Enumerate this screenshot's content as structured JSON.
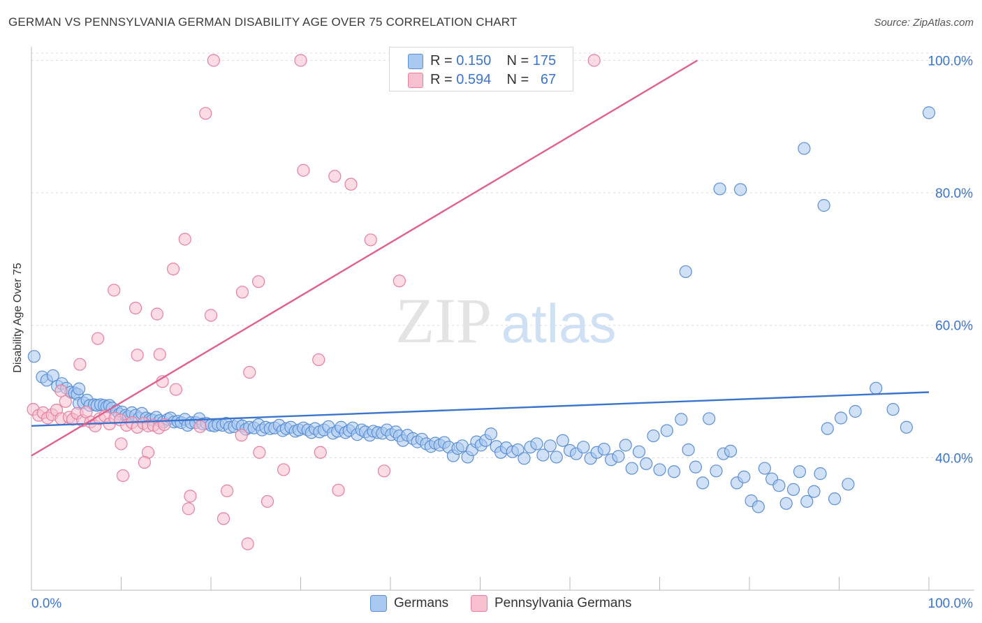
{
  "title": "GERMAN VS PENNSYLVANIA GERMAN DISABILITY AGE OVER 75 CORRELATION CHART",
  "source": "Source: ZipAtlas.com",
  "watermark": {
    "zip": "ZIP",
    "atlas": "atlas"
  },
  "legend": {
    "r_label": "R =",
    "n_label": "N =",
    "rows": [
      {
        "r": "0.150",
        "n": "175",
        "fill": "#a9c8f0",
        "stroke": "#5b8fd6"
      },
      {
        "r": "0.594",
        "n": "67",
        "fill": "#f7c0cf",
        "stroke": "#e67fa0"
      }
    ]
  },
  "bottom_legend": [
    {
      "label": "Germans",
      "fill": "#a9c8f0",
      "stroke": "#5b8fd6"
    },
    {
      "label": "Pennsylvania Germans",
      "fill": "#f7c0cf",
      "stroke": "#e67fa0"
    }
  ],
  "chart_data": {
    "type": "scatter",
    "title": "GERMAN VS PENNSYLVANIA GERMAN DISABILITY AGE OVER 75 CORRELATION CHART",
    "xlabel": "",
    "ylabel": "Disability Age Over 75",
    "xlim": [
      0,
      100
    ],
    "ylim": [
      20,
      101
    ],
    "x_tick_labels": {
      "left": "0.0%",
      "right": "100.0%"
    },
    "y_ticks": [
      40,
      60,
      80,
      100
    ],
    "y_tick_labels": [
      "40.0%",
      "60.0%",
      "80.0%",
      "100.0%"
    ],
    "grid": true,
    "series": [
      {
        "name": "Germans",
        "color": "#3a74cc",
        "fill": "#a9c8f0",
        "stroke": "#5b8fd6",
        "trend": {
          "x": [
            0,
            100
          ],
          "y": [
            44.8,
            49.9
          ]
        },
        "points": [
          [
            0.3,
            55.3
          ],
          [
            1.2,
            52.2
          ],
          [
            1.7,
            51.7
          ],
          [
            2.4,
            52.4
          ],
          [
            2.9,
            50.8
          ],
          [
            3.4,
            51.2
          ],
          [
            3.9,
            50.5
          ],
          [
            4.4,
            49.9
          ],
          [
            4.8,
            49.8
          ],
          [
            5.1,
            49.6
          ],
          [
            5.3,
            50.4
          ],
          [
            5.3,
            48.2
          ],
          [
            5.8,
            48.3
          ],
          [
            6.2,
            48.7
          ],
          [
            6.5,
            47.9
          ],
          [
            7.0,
            48.0
          ],
          [
            7.3,
            47.9
          ],
          [
            7.7,
            48.0
          ],
          [
            8.1,
            47.9
          ],
          [
            8.4,
            47.7
          ],
          [
            8.7,
            47.9
          ],
          [
            9.0,
            47.5
          ],
          [
            9.5,
            47.1
          ],
          [
            9.8,
            46.6
          ],
          [
            10.1,
            46.9
          ],
          [
            10.5,
            46.4
          ],
          [
            10.8,
            46.2
          ],
          [
            11.2,
            46.8
          ],
          [
            11.6,
            46.4
          ],
          [
            12.0,
            46.0
          ],
          [
            12.3,
            46.7
          ],
          [
            12.8,
            46.0
          ],
          [
            13.2,
            45.8
          ],
          [
            13.5,
            45.7
          ],
          [
            13.9,
            46.1
          ],
          [
            14.3,
            45.6
          ],
          [
            14.7,
            45.4
          ],
          [
            15.2,
            45.8
          ],
          [
            15.5,
            46.0
          ],
          [
            15.9,
            45.4
          ],
          [
            16.3,
            45.5
          ],
          [
            16.7,
            45.3
          ],
          [
            17.1,
            45.8
          ],
          [
            17.4,
            44.9
          ],
          [
            17.8,
            45.3
          ],
          [
            18.3,
            45.3
          ],
          [
            18.7,
            45.9
          ],
          [
            19.1,
            45.1
          ],
          [
            19.5,
            45.2
          ],
          [
            20.0,
            44.9
          ],
          [
            20.4,
            44.8
          ],
          [
            20.8,
            45.0
          ],
          [
            21.3,
            44.9
          ],
          [
            21.7,
            45.2
          ],
          [
            22.1,
            44.6
          ],
          [
            22.6,
            44.7
          ],
          [
            23.0,
            45.1
          ],
          [
            23.5,
            44.8
          ],
          [
            23.9,
            44.3
          ],
          [
            24.3,
            44.6
          ],
          [
            24.8,
            44.5
          ],
          [
            25.3,
            45.0
          ],
          [
            25.7,
            44.2
          ],
          [
            26.1,
            44.6
          ],
          [
            26.6,
            44.4
          ],
          [
            27.1,
            44.5
          ],
          [
            27.6,
            44.9
          ],
          [
            28.0,
            44.1
          ],
          [
            28.4,
            44.4
          ],
          [
            28.9,
            44.6
          ],
          [
            29.4,
            44.0
          ],
          [
            29.8,
            44.2
          ],
          [
            30.3,
            44.5
          ],
          [
            30.8,
            44.2
          ],
          [
            31.2,
            43.8
          ],
          [
            31.6,
            44.4
          ],
          [
            32.1,
            43.9
          ],
          [
            32.6,
            44.2
          ],
          [
            33.1,
            44.7
          ],
          [
            33.6,
            43.7
          ],
          [
            34.1,
            44.0
          ],
          [
            34.5,
            44.6
          ],
          [
            35.0,
            43.8
          ],
          [
            35.4,
            44.1
          ],
          [
            35.8,
            44.5
          ],
          [
            36.3,
            43.5
          ],
          [
            36.8,
            44.2
          ],
          [
            37.2,
            43.9
          ],
          [
            37.7,
            43.4
          ],
          [
            38.1,
            44.0
          ],
          [
            38.6,
            43.8
          ],
          [
            39.1,
            43.7
          ],
          [
            39.6,
            44.2
          ],
          [
            40.1,
            43.5
          ],
          [
            40.6,
            43.9
          ],
          [
            41.0,
            43.3
          ],
          [
            41.4,
            42.6
          ],
          [
            41.9,
            43.4
          ],
          [
            42.5,
            42.9
          ],
          [
            43.0,
            42.4
          ],
          [
            43.5,
            42.8
          ],
          [
            44.0,
            42.1
          ],
          [
            44.5,
            41.7
          ],
          [
            45.0,
            42.2
          ],
          [
            45.5,
            41.9
          ],
          [
            46.0,
            42.3
          ],
          [
            46.5,
            41.6
          ],
          [
            47.0,
            40.3
          ],
          [
            47.5,
            41.4
          ],
          [
            48.0,
            41.8
          ],
          [
            48.6,
            40.1
          ],
          [
            49.1,
            41.2
          ],
          [
            49.6,
            42.4
          ],
          [
            50.1,
            41.9
          ],
          [
            50.6,
            42.6
          ],
          [
            51.2,
            43.6
          ],
          [
            51.8,
            41.7
          ],
          [
            52.3,
            40.8
          ],
          [
            52.9,
            41.5
          ],
          [
            53.6,
            40.9
          ],
          [
            54.2,
            41.2
          ],
          [
            54.9,
            39.9
          ],
          [
            55.6,
            41.6
          ],
          [
            56.3,
            42.1
          ],
          [
            57.0,
            40.4
          ],
          [
            57.8,
            41.8
          ],
          [
            58.5,
            40.1
          ],
          [
            59.2,
            42.6
          ],
          [
            60.0,
            41.1
          ],
          [
            60.7,
            40.6
          ],
          [
            61.5,
            41.6
          ],
          [
            62.3,
            39.9
          ],
          [
            63.0,
            40.8
          ],
          [
            63.8,
            41.3
          ],
          [
            64.6,
            39.7
          ],
          [
            65.4,
            40.2
          ],
          [
            66.2,
            41.9
          ],
          [
            66.9,
            38.4
          ],
          [
            67.7,
            40.9
          ],
          [
            68.5,
            39.1
          ],
          [
            69.3,
            43.3
          ],
          [
            70.0,
            38.2
          ],
          [
            70.8,
            44.1
          ],
          [
            71.6,
            37.9
          ],
          [
            72.4,
            45.8
          ],
          [
            73.2,
            41.2
          ],
          [
            74.0,
            38.6
          ],
          [
            74.8,
            36.2
          ],
          [
            75.5,
            45.9
          ],
          [
            76.3,
            38.0
          ],
          [
            77.1,
            40.6
          ],
          [
            77.9,
            41.0
          ],
          [
            78.6,
            36.2
          ],
          [
            79.4,
            37.1
          ],
          [
            80.2,
            33.5
          ],
          [
            81.0,
            32.6
          ],
          [
            81.7,
            38.4
          ],
          [
            82.5,
            36.8
          ],
          [
            83.3,
            35.8
          ],
          [
            84.1,
            33.1
          ],
          [
            84.9,
            35.2
          ],
          [
            85.6,
            37.9
          ],
          [
            86.4,
            33.4
          ],
          [
            87.2,
            34.9
          ],
          [
            87.9,
            37.6
          ],
          [
            88.7,
            44.4
          ],
          [
            89.5,
            33.8
          ],
          [
            90.2,
            46.0
          ],
          [
            91.0,
            36.0
          ],
          [
            91.8,
            47.0
          ],
          [
            94.1,
            50.5
          ],
          [
            96.0,
            47.3
          ],
          [
            97.5,
            44.6
          ],
          [
            100.0,
            92.1
          ],
          [
            86.1,
            86.7
          ],
          [
            76.7,
            80.6
          ],
          [
            79.0,
            80.5
          ],
          [
            88.3,
            78.1
          ],
          [
            72.9,
            68.1
          ]
        ]
      },
      {
        "name": "Pennsylvania Germans",
        "color": "#e0608a",
        "fill": "#f7c0cf",
        "stroke": "#e67fa0",
        "trend": {
          "x": [
            0,
            74.2
          ],
          "y": [
            40.3,
            100
          ]
        },
        "points": [
          [
            0.2,
            47.3
          ],
          [
            0.8,
            46.4
          ],
          [
            1.3,
            46.8
          ],
          [
            1.8,
            46.0
          ],
          [
            2.3,
            46.5
          ],
          [
            2.8,
            47.2
          ],
          [
            3.3,
            45.9
          ],
          [
            3.8,
            48.5
          ],
          [
            4.2,
            46.1
          ],
          [
            4.6,
            45.8
          ],
          [
            5.1,
            46.7
          ],
          [
            5.7,
            45.6
          ],
          [
            6.1,
            46.9
          ],
          [
            6.6,
            45.4
          ],
          [
            7.1,
            44.8
          ],
          [
            7.6,
            45.9
          ],
          [
            8.2,
            46.3
          ],
          [
            8.7,
            45.1
          ],
          [
            9.3,
            46.0
          ],
          [
            9.9,
            45.7
          ],
          [
            10.6,
            44.9
          ],
          [
            11.2,
            45.3
          ],
          [
            11.8,
            44.6
          ],
          [
            12.5,
            45.2
          ],
          [
            13.0,
            44.8
          ],
          [
            13.6,
            44.9
          ],
          [
            14.2,
            44.5
          ],
          [
            14.8,
            45.0
          ],
          [
            20.3,
            100.0
          ],
          [
            30.0,
            100.0
          ],
          [
            54.0,
            100.0
          ],
          [
            62.7,
            100.0
          ],
          [
            19.4,
            92.0
          ],
          [
            30.3,
            83.4
          ],
          [
            33.8,
            82.5
          ],
          [
            35.6,
            81.3
          ],
          [
            17.1,
            73.0
          ],
          [
            37.8,
            72.9
          ],
          [
            15.8,
            68.5
          ],
          [
            9.2,
            65.3
          ],
          [
            23.5,
            65.0
          ],
          [
            25.3,
            66.6
          ],
          [
            41.0,
            66.7
          ],
          [
            11.6,
            62.6
          ],
          [
            14.0,
            61.7
          ],
          [
            20.0,
            61.5
          ],
          [
            7.4,
            58.0
          ],
          [
            11.8,
            55.5
          ],
          [
            14.3,
            55.6
          ],
          [
            32.0,
            54.8
          ],
          [
            5.4,
            54.1
          ],
          [
            24.3,
            52.9
          ],
          [
            14.6,
            51.5
          ],
          [
            16.1,
            50.3
          ],
          [
            3.3,
            50.1
          ],
          [
            18.8,
            44.7
          ],
          [
            23.4,
            43.4
          ],
          [
            10.0,
            42.1
          ],
          [
            13.0,
            40.8
          ],
          [
            25.4,
            40.8
          ],
          [
            32.2,
            40.8
          ],
          [
            12.6,
            39.3
          ],
          [
            28.1,
            38.2
          ],
          [
            39.3,
            38.0
          ],
          [
            10.2,
            37.3
          ],
          [
            17.7,
            34.2
          ],
          [
            21.8,
            35.0
          ],
          [
            34.2,
            35.1
          ],
          [
            26.3,
            33.4
          ],
          [
            17.5,
            32.3
          ],
          [
            21.4,
            30.8
          ],
          [
            24.1,
            27.0
          ]
        ]
      }
    ]
  }
}
